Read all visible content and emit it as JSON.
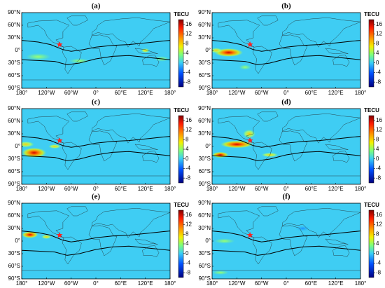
{
  "panels": [
    {
      "label": "(a)"
    },
    {
      "label": "(b)"
    },
    {
      "label": "(c)"
    },
    {
      "label": "(d)"
    },
    {
      "label": "(e)"
    },
    {
      "label": "(f)"
    }
  ],
  "lat_ticks": [
    "90°N",
    "60°N",
    "30°N",
    "0°",
    "30°S",
    "60°S",
    "90°S"
  ],
  "lon_ticks": [
    "180°",
    "120°W",
    "60°W",
    "0°",
    "60°E",
    "120°E",
    "180°"
  ],
  "colorbar": {
    "title": "TECU",
    "ticks": [
      16,
      12,
      8,
      4,
      0,
      -4,
      -8
    ],
    "lim": [
      -10,
      18
    ]
  }
}
